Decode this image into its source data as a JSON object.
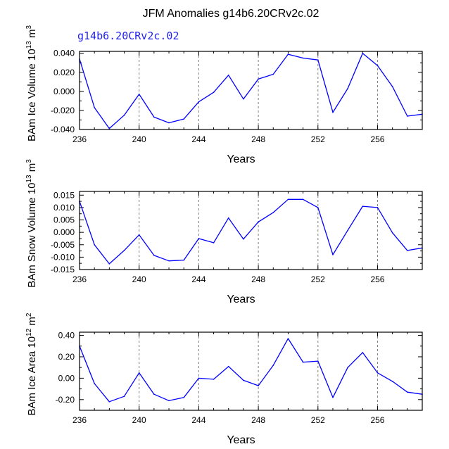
{
  "figure": {
    "title": "JFM Anomalies g14b6.20CRv2c.02",
    "subtitle": "g14b6.20CRv2c.02"
  },
  "colors": {
    "line": "#0000ff",
    "ref": "#808080",
    "axis": "#000000"
  },
  "chart_data": [
    {
      "type": "line",
      "ylabel_main": "BAm Ice Volume 10",
      "ylabel_exp1": "13",
      "ylabel_mid": " m",
      "ylabel_exp2": "3",
      "xlabel": "Years",
      "xlim": [
        236,
        259
      ],
      "ylim": [
        -0.04,
        0.042
      ],
      "xticks": [
        236,
        240,
        244,
        248,
        252,
        256
      ],
      "ref_lines": [
        240,
        244,
        248,
        252,
        256
      ],
      "yticks": [
        -0.04,
        -0.02,
        0.0,
        0.02,
        0.04
      ],
      "ytick_labels": [
        "-0.040",
        "-0.020",
        "0.000",
        "0.020",
        "0.040"
      ],
      "x": [
        236,
        237,
        238,
        239,
        240,
        241,
        242,
        243,
        244,
        245,
        246,
        247,
        248,
        249,
        250,
        251,
        252,
        253,
        254,
        255,
        256,
        257,
        258,
        259
      ],
      "y": [
        0.034,
        -0.017,
        -0.039,
        -0.025,
        -0.003,
        -0.027,
        -0.033,
        -0.029,
        -0.011,
        -0.001,
        0.017,
        -0.008,
        0.013,
        0.018,
        0.039,
        0.035,
        0.033,
        -0.022,
        0.003,
        0.04,
        0.027,
        0.005,
        -0.026,
        -0.024
      ]
    },
    {
      "type": "line",
      "ylabel_main": "BAm Snow Volume 10",
      "ylabel_exp1": "13",
      "ylabel_mid": " m",
      "ylabel_exp2": "3",
      "xlabel": "Years",
      "xlim": [
        236,
        259
      ],
      "ylim": [
        -0.015,
        0.0165
      ],
      "xticks": [
        236,
        240,
        244,
        248,
        252,
        256
      ],
      "ref_lines": [
        240,
        244,
        248,
        252,
        256
      ],
      "yticks": [
        -0.015,
        -0.01,
        -0.005,
        0.0,
        0.005,
        0.01,
        0.015
      ],
      "ytick_labels": [
        "-0.015",
        "-0.010",
        "-0.005",
        "0.000",
        "0.005",
        "0.010",
        "0.015"
      ],
      "x": [
        236,
        237,
        238,
        239,
        240,
        241,
        242,
        243,
        244,
        245,
        246,
        247,
        248,
        249,
        250,
        251,
        252,
        253,
        254,
        255,
        256,
        257,
        258,
        259
      ],
      "y": [
        0.0125,
        -0.005,
        -0.0127,
        -0.0073,
        -0.001,
        -0.0093,
        -0.0115,
        -0.0112,
        -0.0025,
        -0.0042,
        0.0058,
        -0.0027,
        0.0042,
        0.008,
        0.0133,
        0.0133,
        0.01,
        -0.009,
        0.0008,
        0.0105,
        0.01,
        -0.0002,
        -0.0073,
        -0.0063
      ]
    },
    {
      "type": "line",
      "ylabel_main": "BAm Ice Area 10",
      "ylabel_exp1": "12",
      "ylabel_mid": " m",
      "ylabel_exp2": "2",
      "xlabel": "Years",
      "xlim": [
        236,
        259
      ],
      "ylim": [
        -0.3,
        0.43
      ],
      "xticks": [
        236,
        240,
        244,
        248,
        252,
        256
      ],
      "ref_lines": [
        240,
        244,
        248,
        252,
        256
      ],
      "yticks": [
        -0.2,
        0.0,
        0.2,
        0.4
      ],
      "ytick_labels": [
        "-0.20",
        "0.00",
        "0.20",
        "0.40"
      ],
      "x": [
        236,
        237,
        238,
        239,
        240,
        241,
        242,
        243,
        244,
        245,
        246,
        247,
        248,
        249,
        250,
        251,
        252,
        253,
        254,
        255,
        256,
        257,
        258,
        259
      ],
      "y": [
        0.3,
        -0.05,
        -0.22,
        -0.17,
        0.05,
        -0.15,
        -0.21,
        -0.18,
        0.0,
        -0.01,
        0.11,
        -0.02,
        -0.07,
        0.12,
        0.37,
        0.15,
        0.16,
        -0.18,
        0.1,
        0.24,
        0.05,
        -0.03,
        -0.13,
        -0.15
      ]
    }
  ]
}
